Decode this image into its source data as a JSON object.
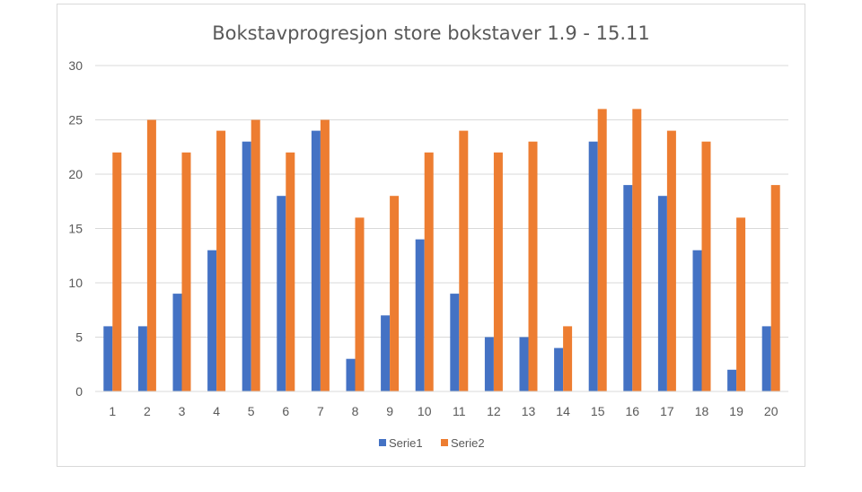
{
  "chart_data": {
    "type": "bar",
    "title": "Bokstavprogresjon store bokstaver 1.9 - 15.11",
    "xlabel": "",
    "ylabel": "",
    "categories": [
      "1",
      "2",
      "3",
      "4",
      "5",
      "6",
      "7",
      "8",
      "9",
      "10",
      "11",
      "12",
      "13",
      "14",
      "15",
      "16",
      "17",
      "18",
      "19",
      "20"
    ],
    "series": [
      {
        "name": "Serie1",
        "color": "#4472c4",
        "values": [
          6,
          6,
          9,
          13,
          23,
          18,
          24,
          3,
          7,
          14,
          9,
          5,
          5,
          4,
          23,
          19,
          18,
          13,
          2,
          6
        ]
      },
      {
        "name": "Serie2",
        "color": "#ed7d31",
        "values": [
          22,
          25,
          22,
          24,
          25,
          22,
          25,
          16,
          18,
          22,
          24,
          22,
          23,
          6,
          26,
          26,
          24,
          23,
          16,
          19
        ]
      }
    ],
    "ylim": [
      0,
      30
    ],
    "yticks": [
      0,
      5,
      10,
      15,
      20,
      25,
      30
    ],
    "grid": true,
    "legend": "bottom"
  }
}
